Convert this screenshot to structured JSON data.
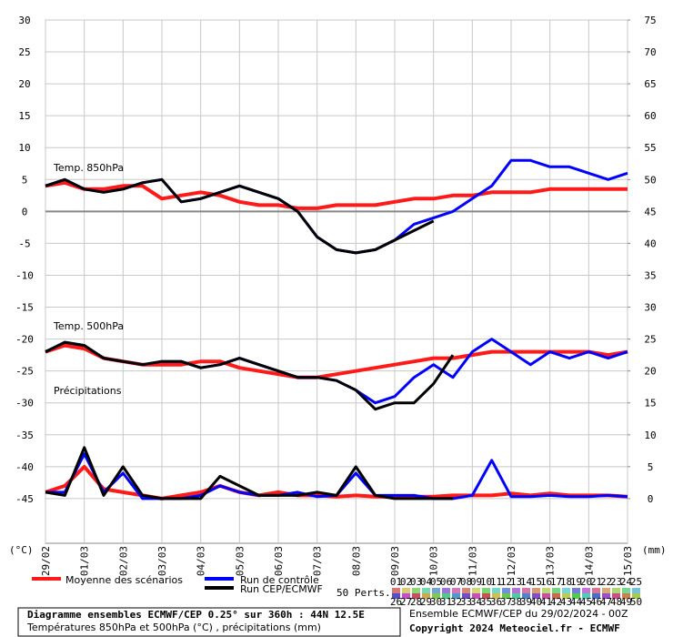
{
  "chart_data": [
    {
      "type": "line",
      "title": "Temp. 850hPa",
      "ylabel": "(°C)",
      "y2label": "(mm)",
      "categories": [
        "29/02",
        null,
        "01/03",
        null,
        "02/03",
        null,
        "03/03",
        null,
        "04/03",
        null,
        "05/03",
        null,
        "06/03",
        null,
        "07/03",
        null,
        "08/03",
        null,
        "09/03",
        null,
        "10/03",
        null,
        "11/03",
        null,
        "12/03",
        null,
        "13/03",
        null,
        "14/03",
        null,
        "15/03"
      ],
      "ylim": [
        -52,
        30
      ],
      "yticks": [
        30,
        25,
        20,
        15,
        10,
        5,
        0,
        -5,
        -10,
        -15,
        -20,
        -25,
        -30,
        -35,
        -40,
        -45
      ],
      "y2lim": [
        -7,
        75
      ],
      "y2ticks": [
        75,
        70,
        65,
        60,
        55,
        50,
        45,
        40,
        35,
        30,
        25,
        20,
        15,
        10,
        5,
        0
      ],
      "grid": true,
      "series": [
        {
          "name": "Moyenne des scénarios",
          "color": "#ff1a1a",
          "values": [
            4,
            4.5,
            3.5,
            3.5,
            4,
            4,
            2,
            2.5,
            3,
            2.5,
            1.5,
            1,
            1,
            0.5,
            0.5,
            1,
            1,
            1,
            1.5,
            2,
            2,
            2.5,
            2.5,
            3,
            3,
            3,
            3.5,
            3.5,
            3.5,
            3.5,
            3.5
          ]
        },
        {
          "name": "Run de contrôle",
          "color": "#0000ff",
          "values": [
            4,
            5,
            3.5,
            3,
            3.5,
            4.5,
            5,
            1.5,
            2,
            3,
            4,
            3,
            2,
            0,
            -4,
            -6,
            -6.5,
            -6,
            -4.5,
            -2,
            -1,
            0,
            2,
            4,
            8,
            8,
            7,
            7,
            6,
            5,
            6
          ]
        },
        {
          "name": "Run CEP/ECMWF",
          "color": "#000000",
          "values": [
            4,
            5,
            3.5,
            3,
            3.5,
            4.5,
            5,
            1.5,
            2,
            3,
            4,
            3,
            2,
            0,
            -4,
            -6,
            -6.5,
            -6,
            -4.5,
            -3,
            -1.5,
            null,
            null,
            null,
            null,
            null,
            null,
            null,
            null,
            null,
            null
          ]
        }
      ]
    },
    {
      "type": "line",
      "title": "Temp. 500hPa",
      "series": [
        {
          "name": "Moyenne des scénarios",
          "color": "#ff1a1a",
          "values": [
            -22,
            -21,
            -21.5,
            -23,
            -23.5,
            -24,
            -24,
            -24,
            -23.5,
            -23.5,
            -24.5,
            -25,
            -25.5,
            -26,
            -26,
            -25.5,
            -25,
            -24.5,
            -24,
            -23.5,
            -23,
            -23,
            -22.5,
            -22,
            -22,
            -22,
            -22,
            -22,
            -22,
            -22.5,
            -22
          ]
        },
        {
          "name": "Run de contrôle",
          "color": "#0000ff",
          "values": [
            -22,
            -20.5,
            -21,
            -23,
            -23.5,
            -24,
            -23.5,
            -23.5,
            -24.5,
            -24,
            -23,
            -24,
            -25,
            -26,
            -26,
            -26.5,
            -28,
            -30,
            -29,
            -26,
            -24,
            -26,
            -22,
            -20,
            -22,
            -24,
            -22,
            -23,
            -22,
            -23,
            -22
          ]
        },
        {
          "name": "Run CEP/ECMWF",
          "color": "#000000",
          "values": [
            -22,
            -20.5,
            -21,
            -23,
            -23.5,
            -24,
            -23.5,
            -23.5,
            -24.5,
            -24,
            -23,
            -24,
            -25,
            -26,
            -26,
            -26.5,
            -28,
            -31,
            -30,
            -30,
            -27,
            -22.5,
            null,
            null,
            null,
            null,
            null,
            null,
            null,
            null,
            null
          ]
        }
      ]
    },
    {
      "type": "line",
      "title": "Précipitations",
      "series": [
        {
          "name": "Moyenne des scénarios",
          "color": "#ff1a1a",
          "axis": "y2",
          "values": [
            1,
            2,
            5,
            1.5,
            1,
            0.5,
            0,
            0.5,
            1,
            2,
            1,
            0.5,
            1,
            0.5,
            0.5,
            0.3,
            0.5,
            0.3,
            0.3,
            0.3,
            0.3,
            0.5,
            0.5,
            0.5,
            0.8,
            0.5,
            0.8,
            0.5,
            0.5,
            0.5,
            0.3
          ]
        },
        {
          "name": "Run de contrôle",
          "color": "#0000ff",
          "axis": "y2",
          "values": [
            1,
            1,
            7,
            1,
            4,
            0,
            0,
            0,
            0.5,
            2,
            1,
            0.5,
            0.5,
            1,
            0.3,
            0.5,
            4,
            0.5,
            0.5,
            0.5,
            0,
            0,
            0.5,
            6,
            0.3,
            0.3,
            0.5,
            0.3,
            0.3,
            0.5,
            0.3
          ]
        },
        {
          "name": "Run CEP/ECMWF",
          "color": "#000000",
          "axis": "y2",
          "values": [
            1,
            0.5,
            8,
            0.5,
            5,
            0.5,
            0,
            0,
            0,
            3.5,
            2,
            0.5,
            0.5,
            0.5,
            1,
            0.5,
            5,
            0.5,
            0,
            0,
            0,
            0,
            null,
            null,
            null,
            null,
            null,
            null,
            null,
            null,
            null
          ]
        }
      ]
    }
  ],
  "perturbations": {
    "title": "50 Perts.",
    "labels": [
      "01",
      "02",
      "03",
      "04",
      "05",
      "06",
      "07",
      "08",
      "09",
      "10",
      "11",
      "12",
      "13",
      "14",
      "15",
      "16",
      "17",
      "18",
      "19",
      "20",
      "21",
      "22",
      "23",
      "24",
      "25",
      "26",
      "27",
      "28",
      "29",
      "30",
      "31",
      "32",
      "33",
      "34",
      "35",
      "36",
      "37",
      "38",
      "39",
      "40",
      "41",
      "42",
      "43",
      "44",
      "45",
      "46",
      "47",
      "48",
      "49",
      "50"
    ]
  },
  "footer": {
    "title": "Diagramme ensembles ECMWF/CEP 0.25° sur 360h : 44N 12.5E",
    "subtitle": "Températures 850hPa et 500hPa (°C) , précipitations (mm)",
    "run": "Ensemble ECMWF/CEP du 29/02/2024 - 00Z",
    "copyright": "Copyright 2024 Meteociel.fr - ECMWF"
  }
}
